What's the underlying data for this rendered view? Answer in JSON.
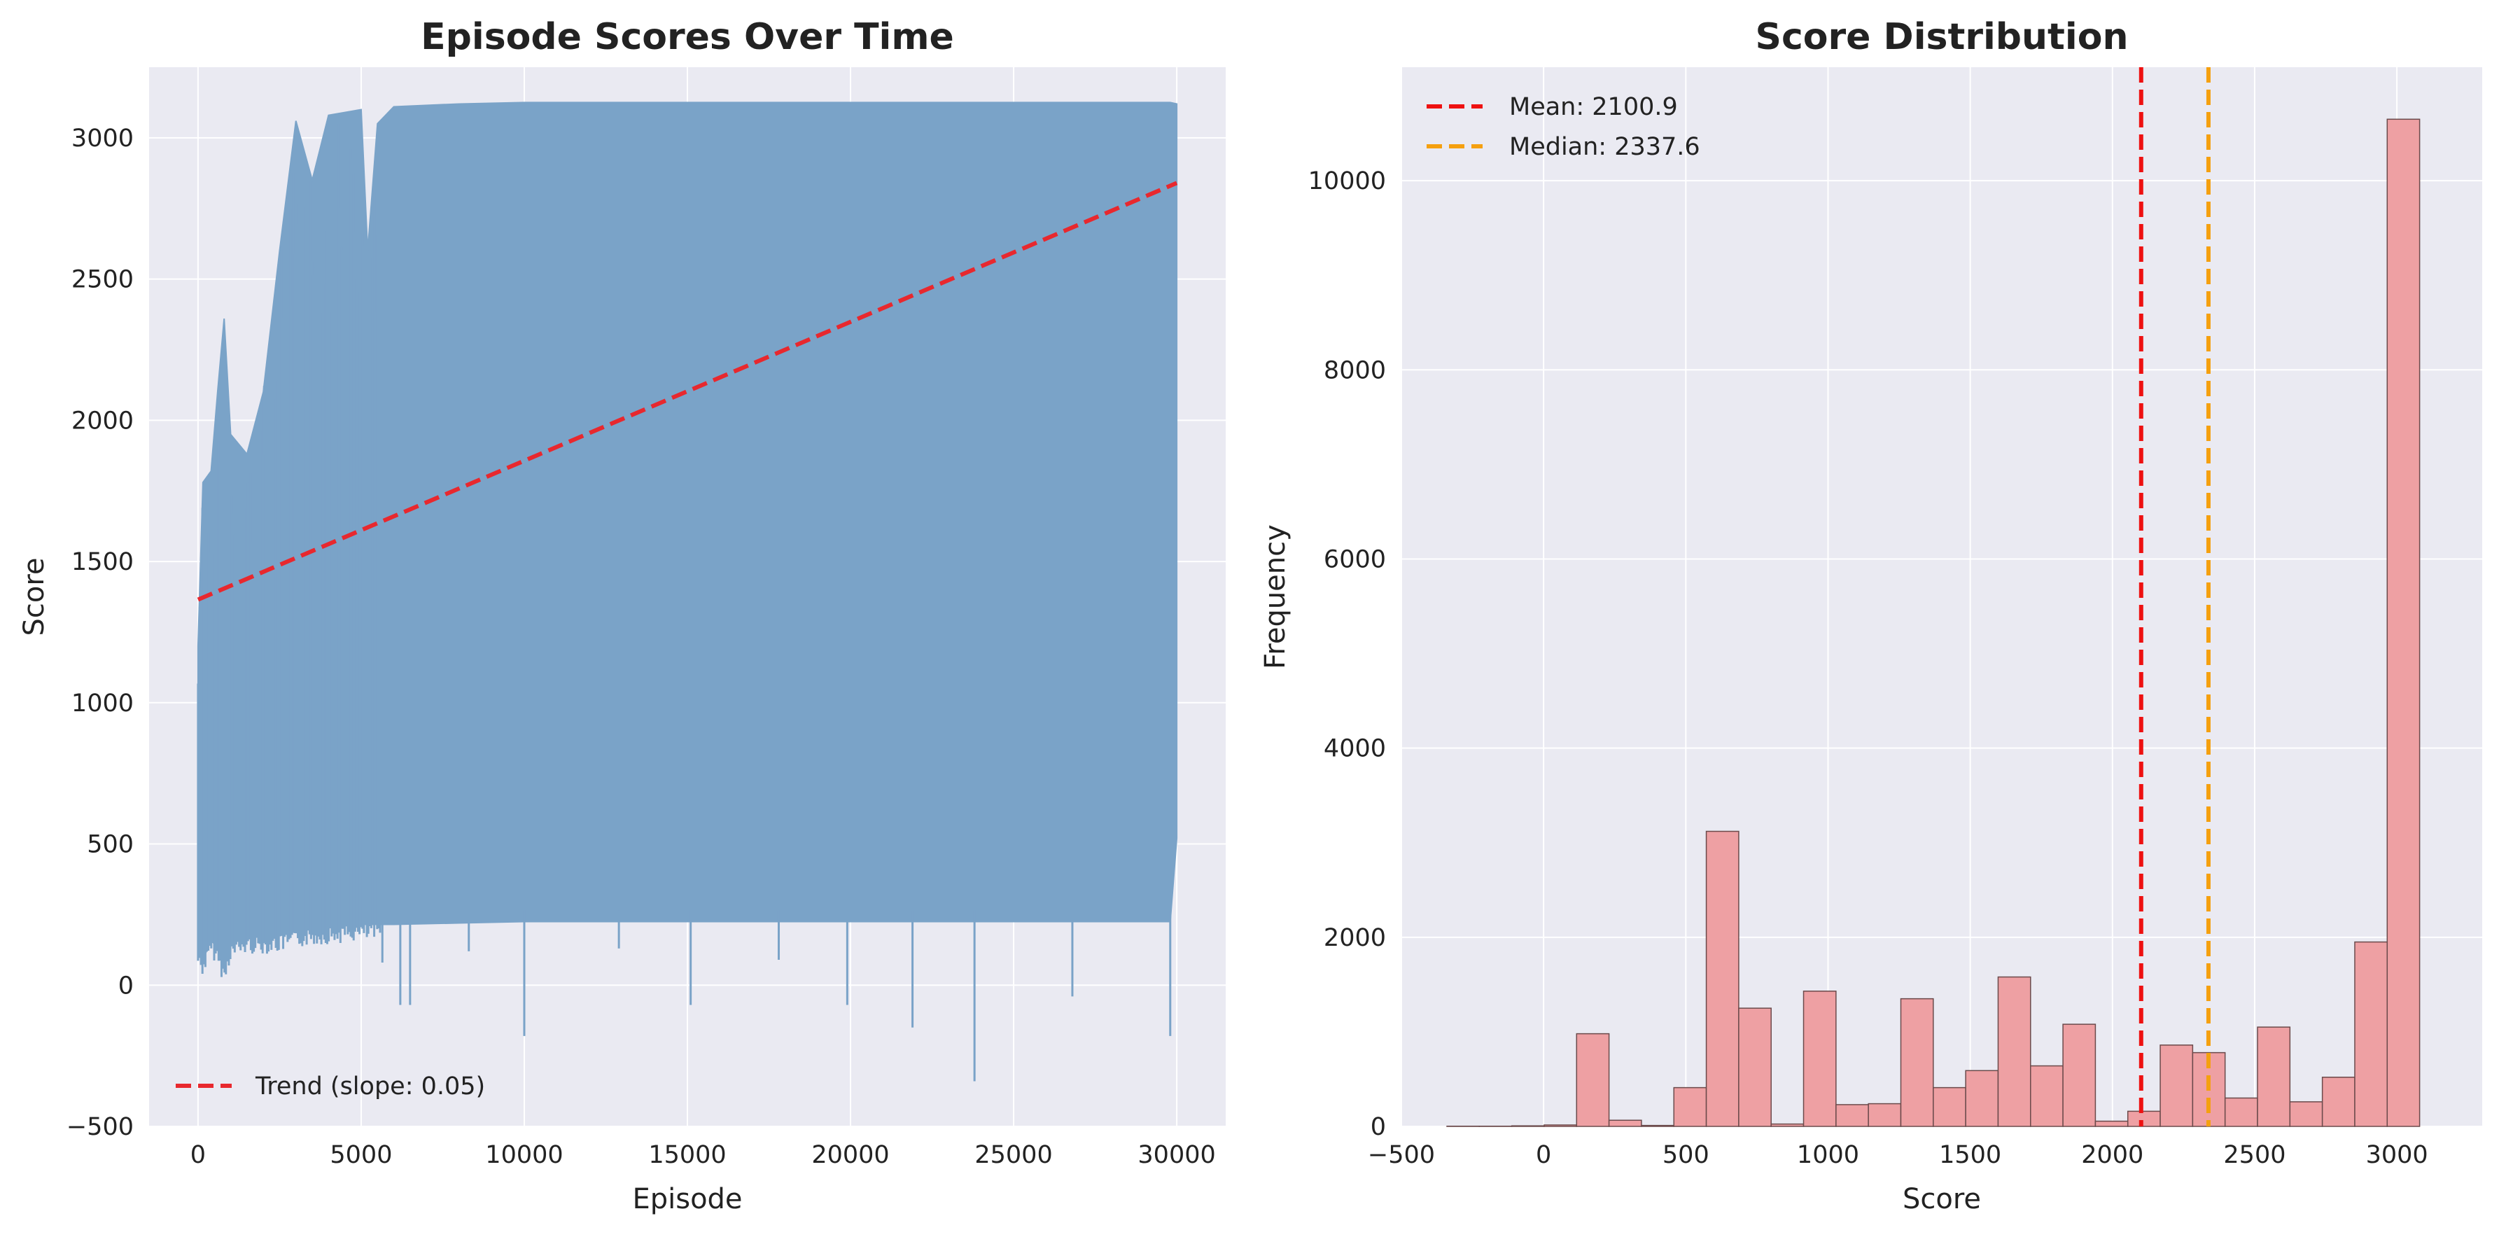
{
  "chart_data": [
    {
      "type": "line",
      "title": "Episode Scores Over Time",
      "xlabel": "Episode",
      "ylabel": "Score",
      "xlim": [
        -1500,
        31500
      ],
      "ylim": [
        -500,
        3250
      ],
      "xticks": [
        0,
        5000,
        10000,
        15000,
        20000,
        25000,
        30000
      ],
      "yticks": [
        -500,
        0,
        500,
        1000,
        1500,
        2000,
        2500,
        3000
      ],
      "grid": true,
      "legend": {
        "placement": "lower-left"
      },
      "series": [
        {
          "kind": "envelope",
          "color": "#7aa3c8",
          "episodes": [
            0,
            30000
          ],
          "points": [
            {
              "x": 0,
              "lower": 120,
              "upper": 1200
            },
            {
              "x": 150,
              "lower": 90,
              "upper": 1780
            },
            {
              "x": 400,
              "lower": 160,
              "upper": 1820
            },
            {
              "x": 600,
              "lower": 130,
              "upper": 2100
            },
            {
              "x": 800,
              "lower": 60,
              "upper": 2360
            },
            {
              "x": 1000,
              "lower": 150,
              "upper": 1950
            },
            {
              "x": 1500,
              "lower": 170,
              "upper": 1880
            },
            {
              "x": 2000,
              "lower": 170,
              "upper": 2100
            },
            {
              "x": 2500,
              "lower": 175,
              "upper": 2600
            },
            {
              "x": 3000,
              "lower": 190,
              "upper": 3060
            },
            {
              "x": 3500,
              "lower": 200,
              "upper": 2850
            },
            {
              "x": 4000,
              "lower": 205,
              "upper": 3080
            },
            {
              "x": 4500,
              "lower": 210,
              "upper": 3090
            },
            {
              "x": 5000,
              "lower": 215,
              "upper": 3100
            },
            {
              "x": 5200,
              "lower": 215,
              "upper": 2600
            },
            {
              "x": 5500,
              "lower": 215,
              "upper": 3050
            },
            {
              "x": 6000,
              "lower": 215,
              "upper": 3110
            },
            {
              "x": 8000,
              "lower": 220,
              "upper": 3120
            },
            {
              "x": 10000,
              "lower": 225,
              "upper": 3125
            },
            {
              "x": 15000,
              "lower": 225,
              "upper": 3125
            },
            {
              "x": 20000,
              "lower": 225,
              "upper": 3125
            },
            {
              "x": 25000,
              "lower": 225,
              "upper": 3125
            },
            {
              "x": 29800,
              "lower": 225,
              "upper": 3125
            },
            {
              "x": 30000,
              "lower": 520,
              "upper": 3120
            }
          ],
          "spikes_low": [
            {
              "x": 5650,
              "y": 80
            },
            {
              "x": 6200,
              "y": -70
            },
            {
              "x": 6500,
              "y": -70
            },
            {
              "x": 8300,
              "y": 120
            },
            {
              "x": 10000,
              "y": -180
            },
            {
              "x": 12900,
              "y": 130
            },
            {
              "x": 15100,
              "y": -70
            },
            {
              "x": 17800,
              "y": 90
            },
            {
              "x": 19900,
              "y": -70
            },
            {
              "x": 21900,
              "y": -150
            },
            {
              "x": 23800,
              "y": -340
            },
            {
              "x": 26800,
              "y": -40
            },
            {
              "x": 29800,
              "y": -180
            }
          ]
        },
        {
          "name": "Trend (slope: 0.05)",
          "kind": "trend",
          "color": "#e8282e",
          "x": [
            0,
            30000
          ],
          "y": [
            1365,
            2840
          ]
        }
      ]
    },
    {
      "type": "bar",
      "title": "Score Distribution",
      "xlabel": "Score",
      "ylabel": "Frequency",
      "xlim": [
        -500,
        3300
      ],
      "ylim": [
        0,
        11200
      ],
      "xticks": [
        -500,
        0,
        500,
        1000,
        1500,
        2000,
        2500,
        3000
      ],
      "yticks": [
        0,
        2000,
        4000,
        6000,
        8000,
        10000
      ],
      "grid": true,
      "legend": {
        "placement": "top-left"
      },
      "bin_edges": [
        -340,
        -226,
        -112,
        2,
        116,
        230,
        344,
        458,
        572,
        686,
        800,
        914,
        1028,
        1142,
        1256,
        1370,
        1484,
        1598,
        1712,
        1826,
        1940,
        2054,
        2168,
        2282,
        2396,
        2510,
        2624,
        2738,
        2852,
        2966,
        3080
      ],
      "counts": [
        2,
        2,
        6,
        15,
        980,
        65,
        10,
        410,
        3120,
        1250,
        25,
        1430,
        230,
        240,
        1350,
        410,
        590,
        1580,
        640,
        1080,
        55,
        160,
        860,
        780,
        300,
        1050,
        260,
        520,
        1950,
        10650
      ],
      "bar_color": "#eea0a3",
      "series": [
        {
          "name": "Mean: 2100.9",
          "kind": "vline",
          "value": 2100.9,
          "color": "#ee1111"
        },
        {
          "name": "Median: 2337.6",
          "kind": "vline",
          "value": 2337.6,
          "color": "#f5a00f"
        }
      ]
    }
  ]
}
